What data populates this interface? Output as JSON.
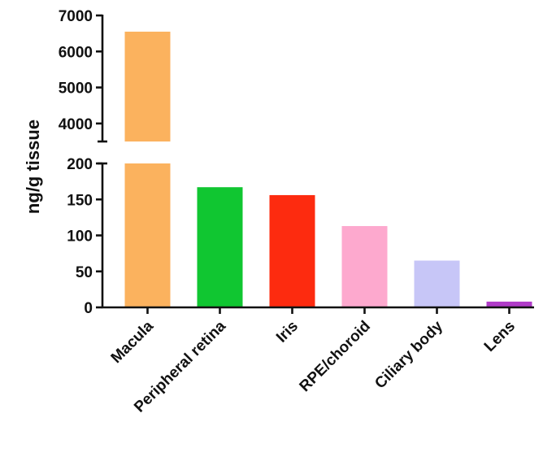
{
  "chart_data": {
    "type": "bar",
    "title": "",
    "xlabel": "",
    "ylabel": "ng/g tissue",
    "axis_break": true,
    "y_segments": [
      {
        "ylim": [
          0,
          200
        ],
        "ticks": [
          0,
          50,
          100,
          150,
          200
        ]
      },
      {
        "ylim": [
          3500,
          7000
        ],
        "ticks": [
          4000,
          5000,
          6000,
          7000
        ]
      }
    ],
    "categories": [
      "Macula",
      "Peripheral retina",
      "Iris",
      "RPE/choroid",
      "Ciliary body",
      "Lens"
    ],
    "values": [
      6550,
      167,
      156,
      113,
      65,
      8
    ],
    "colors": [
      "#FBB25E",
      "#10C631",
      "#FD2B0F",
      "#FDA9CE",
      "#C7C6F7",
      "#B03CC8"
    ],
    "grid": false,
    "legend": "none"
  }
}
